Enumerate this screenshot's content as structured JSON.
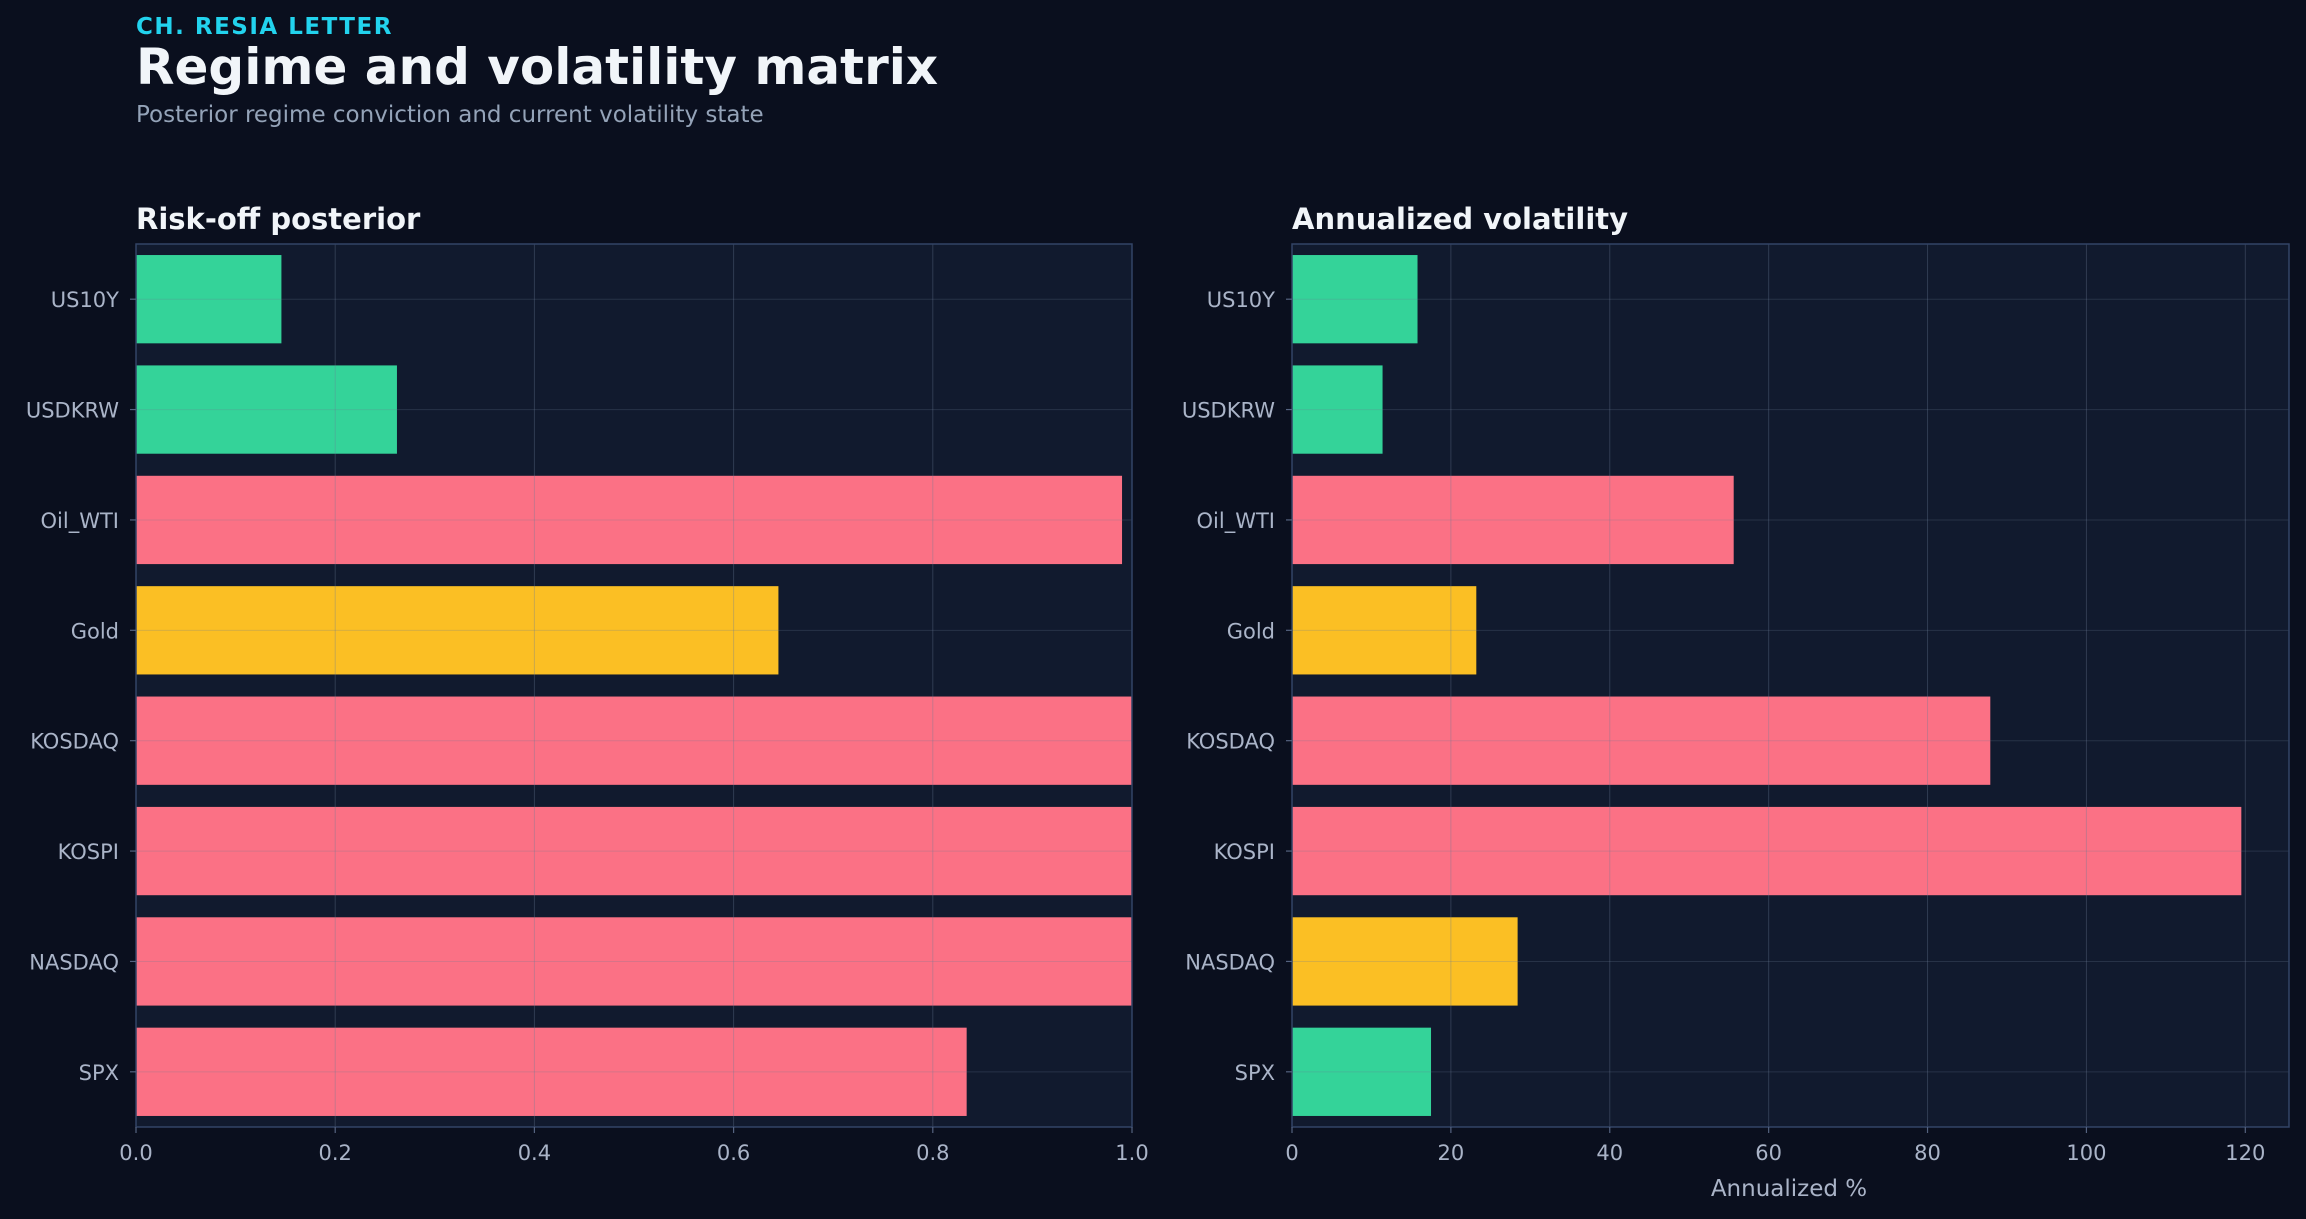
{
  "header": {
    "kicker": "CH. RESIA LETTER",
    "title": "Regime and volatility matrix",
    "subtitle": "Posterior regime conviction and current volatility state"
  },
  "colors": {
    "background": "#0a0f1e",
    "plot_background": "#111a2e",
    "risk_off": "#fb7185",
    "neutral": "#fbbf24",
    "risk_on": "#34d399",
    "accent": "#22d3ee"
  },
  "chart_data": [
    {
      "type": "bar",
      "orientation": "horizontal",
      "title": "Risk-off posterior",
      "xlabel": "",
      "ylabel": "",
      "categories": [
        "US10Y",
        "USDKRW",
        "Oil_WTI",
        "Gold",
        "KOSDAQ",
        "KOSPI",
        "NASDAQ",
        "SPX"
      ],
      "values": [
        0.146,
        0.262,
        0.99,
        0.645,
        1.0,
        1.0,
        1.0,
        0.834
      ],
      "bar_colors": [
        "#34d399",
        "#34d399",
        "#fb7185",
        "#fbbf24",
        "#fb7185",
        "#fb7185",
        "#fb7185",
        "#fb7185"
      ],
      "xlim": [
        0,
        1.0
      ],
      "xticks": [
        0.0,
        0.2,
        0.4,
        0.6,
        0.8,
        1.0
      ],
      "xtick_labels": [
        "0.0",
        "0.2",
        "0.4",
        "0.6",
        "0.8",
        "1.0"
      ],
      "grid": true
    },
    {
      "type": "bar",
      "orientation": "horizontal",
      "title": "Annualized volatility",
      "xlabel": "Annualized %",
      "ylabel": "",
      "categories": [
        "US10Y",
        "USDKRW",
        "Oil_WTI",
        "Gold",
        "KOSDAQ",
        "KOSPI",
        "NASDAQ",
        "SPX"
      ],
      "values": [
        15.8,
        11.4,
        55.6,
        23.2,
        87.9,
        119.5,
        28.4,
        17.5
      ],
      "bar_colors": [
        "#34d399",
        "#34d399",
        "#fb7185",
        "#fbbf24",
        "#fb7185",
        "#fb7185",
        "#fbbf24",
        "#34d399"
      ],
      "xlim": [
        0,
        125.5
      ],
      "xticks": [
        0,
        20,
        40,
        60,
        80,
        100,
        120
      ],
      "xtick_labels": [
        "0",
        "20",
        "40",
        "60",
        "80",
        "100",
        "120"
      ],
      "grid": true
    }
  ]
}
